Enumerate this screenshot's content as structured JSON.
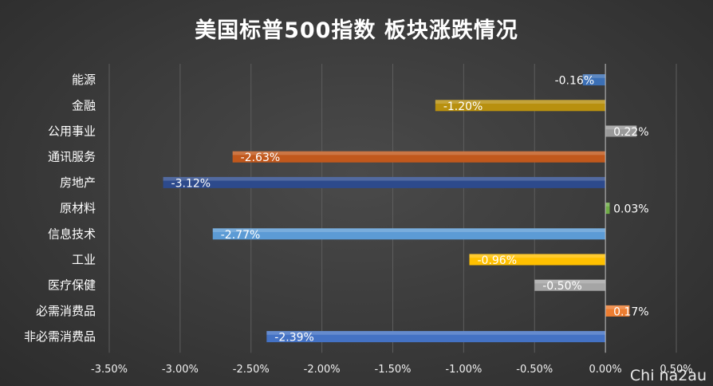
{
  "chart_data": {
    "type": "bar",
    "orientation": "horizontal",
    "title": "美国标普500指数 板块涨跌情况",
    "xlabel": "",
    "ylabel": "",
    "xlim": [
      -3.5,
      0.5
    ],
    "grid": true,
    "legend": "none",
    "x_ticks": [
      "-3.50%",
      "-3.00%",
      "-2.50%",
      "-2.00%",
      "-1.50%",
      "-1.00%",
      "-0.50%",
      "0.00%",
      "0.50%"
    ],
    "x_tick_values": [
      -3.5,
      -3.0,
      -2.5,
      -2.0,
      -1.5,
      -1.0,
      -0.5,
      0.0,
      0.5
    ],
    "categories": [
      "能源",
      "金融",
      "公用事业",
      "通讯服务",
      "房地产",
      "原材料",
      "信息技术",
      "工业",
      "医疗保健",
      "必需消费品",
      "非必需消费品"
    ],
    "values": [
      -0.16,
      -1.2,
      0.22,
      -2.63,
      -3.12,
      0.03,
      -2.77,
      -0.96,
      -0.5,
      0.17,
      -2.39
    ],
    "labels": [
      "-0.16%",
      "-1.20%",
      "0.22%",
      "-2.63%",
      "-3.12%",
      "0.03%",
      "-2.77%",
      "-0.96%",
      "-0.50%",
      "0.17%",
      "-2.39%"
    ],
    "colors": [
      "#3b6fb5",
      "#b8900f",
      "#9a9a9a",
      "#c1581c",
      "#2d4a8c",
      "#6fac46",
      "#5c9bd5",
      "#ffc000",
      "#a5a5a5",
      "#ed7d31",
      "#4472c4"
    ]
  },
  "watermark": "Chi na2au"
}
